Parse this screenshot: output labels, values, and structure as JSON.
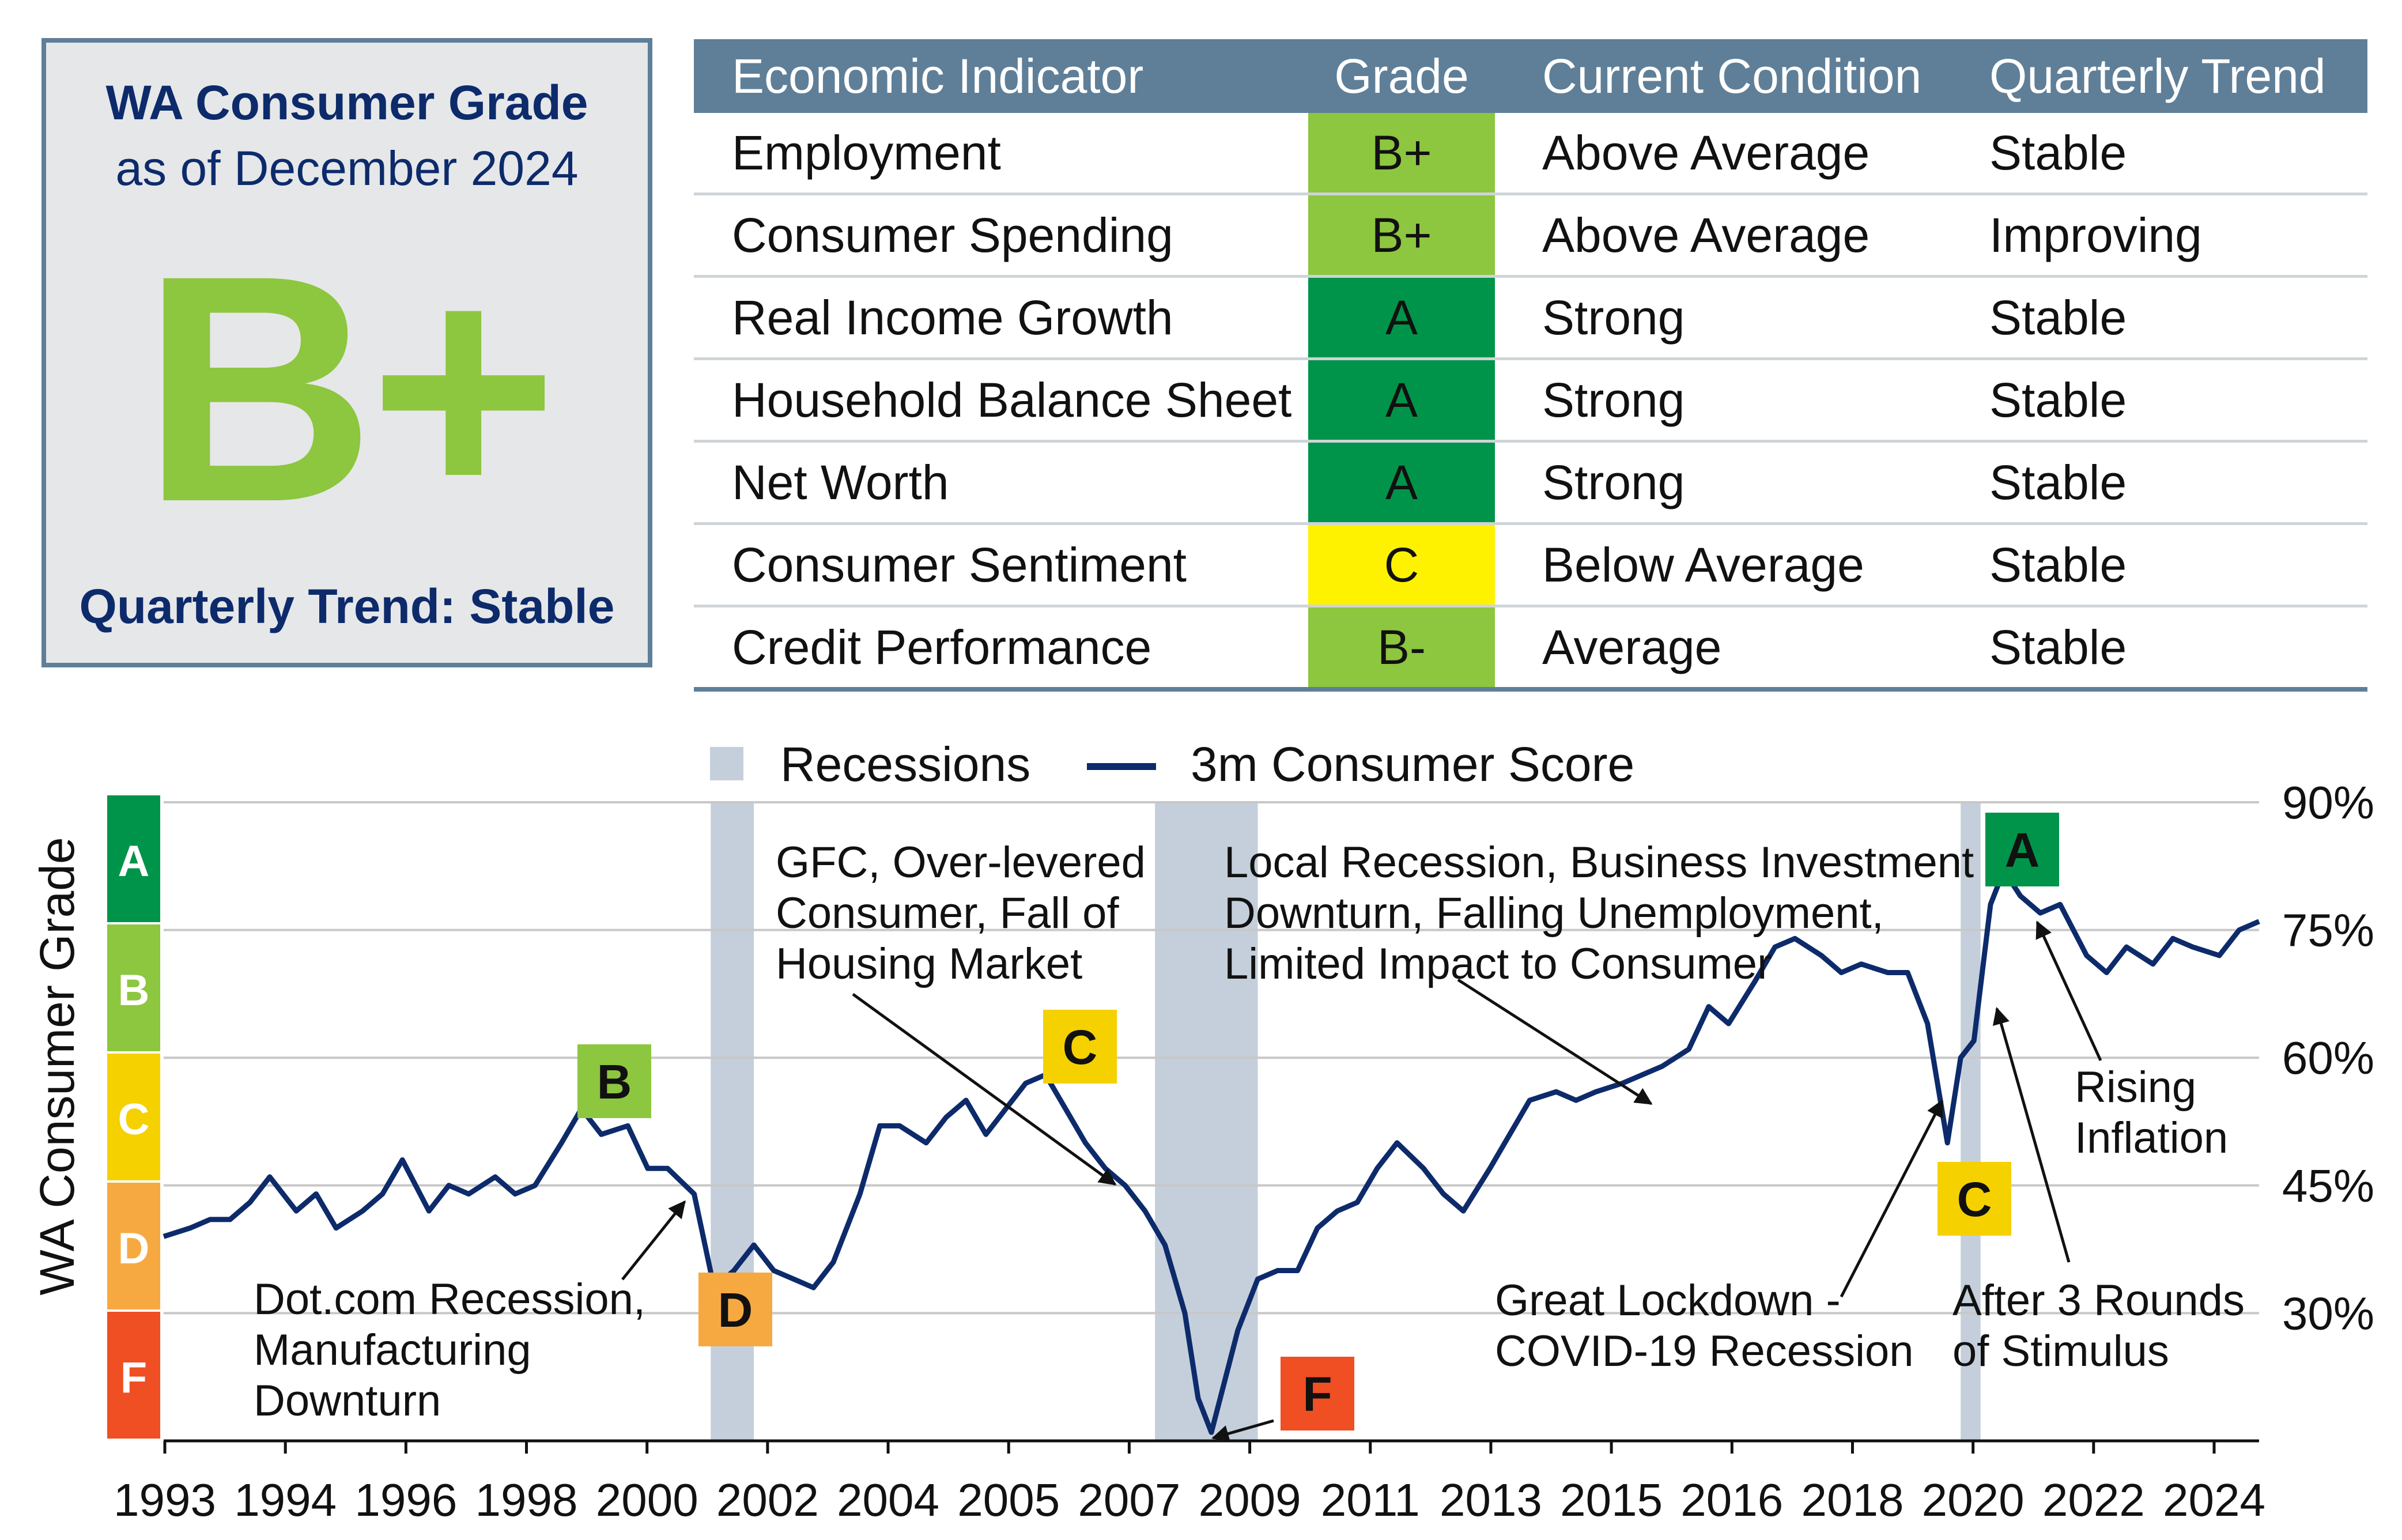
{
  "card": {
    "title": "WA Consumer Grade",
    "subtitle": "as of December 2024",
    "grade": "B+",
    "trend": "Quarterly Trend: Stable"
  },
  "table": {
    "headers": [
      "Economic Indicator",
      "Grade",
      "Current Condition",
      "Quarterly Trend"
    ],
    "rows": [
      {
        "indicator": "Employment",
        "grade": "B+",
        "condition": "Above Average",
        "trend": "Stable",
        "color": "#8dc63f"
      },
      {
        "indicator": "Consumer Spending",
        "grade": "B+",
        "condition": "Above Average",
        "trend": "Improving",
        "color": "#8dc63f"
      },
      {
        "indicator": "Real Income Growth",
        "grade": "A",
        "condition": "Strong",
        "trend": "Stable",
        "color": "#00944a"
      },
      {
        "indicator": "Household Balance Sheet",
        "grade": "A",
        "condition": "Strong",
        "trend": "Stable",
        "color": "#00944a"
      },
      {
        "indicator": "Net Worth",
        "grade": "A",
        "condition": "Strong",
        "trend": "Stable",
        "color": "#00944a"
      },
      {
        "indicator": "Consumer Sentiment",
        "grade": "C",
        "condition": "Below Average",
        "trend": "Stable",
        "color": "#fff200"
      },
      {
        "indicator": "Credit Performance",
        "grade": "B-",
        "condition": "Average",
        "trend": "Stable",
        "color": "#8dc63f"
      }
    ]
  },
  "chart_data": {
    "type": "line",
    "title": "",
    "ylabel": "WA Consumer Grade",
    "ylim": [
      15,
      90
    ],
    "yticks": [
      30,
      45,
      60,
      75,
      90
    ],
    "ytick_labels": [
      "30%",
      "45%",
      "60%",
      "75%",
      "90%"
    ],
    "xlim": [
      1993.0,
      2024.6
    ],
    "xtick_labels": [
      "1993",
      "1994",
      "1996",
      "1998",
      "2000",
      "2002",
      "2004",
      "2005",
      "2007",
      "2009",
      "2011",
      "2013",
      "2015",
      "2016",
      "2018",
      "2020",
      "2022",
      "2024"
    ],
    "legend": [
      "Recessions",
      "3m Consumer Score"
    ],
    "grade_bands": [
      {
        "grade": "A",
        "color": "#00944a"
      },
      {
        "grade": "B",
        "color": "#8dc63f"
      },
      {
        "grade": "C",
        "color": "#f5d100"
      },
      {
        "grade": "D",
        "color": "#f7a941"
      },
      {
        "grade": "F",
        "color": "#f04e23"
      }
    ],
    "recessions": [
      [
        2001.25,
        2001.9
      ],
      [
        2007.95,
        2009.5
      ],
      [
        2020.1,
        2020.4
      ]
    ],
    "series": [
      {
        "name": "3m Consumer Score",
        "color": "#0d2b6b",
        "x": [
          1993.0,
          1993.4,
          1993.7,
          1994.0,
          1994.3,
          1994.6,
          1995.0,
          1995.3,
          1995.6,
          1996.0,
          1996.3,
          1996.6,
          1997.0,
          1997.3,
          1997.6,
          1998.0,
          1998.3,
          1998.6,
          1999.0,
          1999.3,
          1999.6,
          2000.0,
          2000.3,
          2000.6,
          2001.0,
          2001.3,
          2001.6,
          2001.9,
          2002.2,
          2002.5,
          2002.8,
          2003.1,
          2003.5,
          2003.8,
          2004.1,
          2004.5,
          2004.8,
          2005.1,
          2005.4,
          2005.7,
          2006.0,
          2006.3,
          2006.6,
          2006.9,
          2007.2,
          2007.5,
          2007.8,
          2008.1,
          2008.4,
          2008.6,
          2008.8,
          2009.0,
          2009.2,
          2009.5,
          2009.8,
          2010.1,
          2010.4,
          2010.7,
          2011.0,
          2011.3,
          2011.6,
          2012.0,
          2012.3,
          2012.6,
          2013.0,
          2013.3,
          2013.6,
          2014.0,
          2014.3,
          2014.6,
          2015.0,
          2015.3,
          2015.6,
          2016.0,
          2016.3,
          2016.6,
          2017.0,
          2017.3,
          2017.6,
          2018.0,
          2018.3,
          2018.6,
          2019.0,
          2019.3,
          2019.6,
          2019.9,
          2020.1,
          2020.3,
          2020.55,
          2020.75,
          2021.0,
          2021.3,
          2021.6,
          2022.0,
          2022.3,
          2022.6,
          2023.0,
          2023.3,
          2023.6,
          2024.0,
          2024.3,
          2024.6
        ],
        "values": [
          39,
          40,
          41,
          41,
          43,
          46,
          42,
          44,
          40,
          42,
          44,
          48,
          42,
          45,
          44,
          46,
          44,
          45,
          50,
          54,
          51,
          52,
          47,
          47,
          44,
          33,
          35,
          38,
          35,
          34,
          33,
          36,
          44,
          52,
          52,
          50,
          53,
          55,
          51,
          54,
          57,
          58,
          54,
          50,
          47,
          45,
          42,
          38,
          30,
          20,
          16,
          22,
          28,
          34,
          35,
          35,
          40,
          42,
          43,
          47,
          50,
          47,
          44,
          42,
          47,
          51,
          55,
          56,
          55,
          56,
          57,
          58,
          59,
          61,
          66,
          64,
          69,
          73,
          74,
          72,
          70,
          71,
          70,
          70,
          64,
          50,
          60,
          62,
          78,
          82,
          79,
          77,
          78,
          72,
          70,
          73,
          71,
          74,
          73,
          72,
          75,
          76
        ]
      }
    ],
    "annotations": [
      {
        "label": "B",
        "text": "",
        "color": "#8dc63f"
      },
      {
        "label": "D",
        "text": "Dot.com Recession, Manufacturing Downturn",
        "color": "#f7a941"
      },
      {
        "label": "C",
        "text": "GFC, Over-levered Consumer, Fall of Housing Market",
        "color": "#f5d100"
      },
      {
        "label": "F",
        "text": "",
        "color": "#f04e23"
      },
      {
        "label": "",
        "text": "Local Recession, Business Investment Downturn, Falling Unemployment, Limited Impact to Consumer",
        "color": ""
      },
      {
        "label": "C",
        "text": "Great Lockdown - COVID-19 Recession",
        "color": "#f5d100"
      },
      {
        "label": "A",
        "text": "",
        "color": "#00944a"
      },
      {
        "label": "",
        "text": "After 3 Rounds of Stimulus",
        "color": ""
      },
      {
        "label": "",
        "text": "Rising Inflation",
        "color": ""
      }
    ]
  }
}
